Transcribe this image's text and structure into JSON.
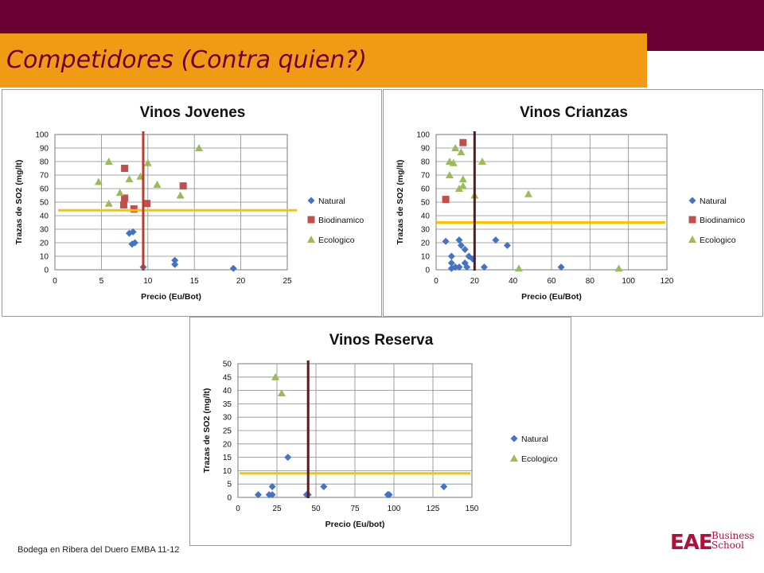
{
  "header": {
    "title": "Competidores (Contra quien?)"
  },
  "footer": {
    "text": "Bodega en Ribera del Duero EMBA 11-12"
  },
  "logo": {
    "mark": "EAE",
    "line1": "Business",
    "line2": "School"
  },
  "colors": {
    "topbar": "#6b0033",
    "titlebar": "#f29a13",
    "natural": "#4472c4",
    "biodinamico": "#c0504d",
    "ecologico": "#9bbb59",
    "threshold": "#ffc000",
    "divider_red": "#c0392b",
    "divider_dark": "#5a1a1a"
  },
  "chart_data": [
    {
      "type": "scatter",
      "title": "Vinos Jovenes",
      "xlabel": "Precio (Eu/Bot)",
      "ylabel": "Trazas de SO2 (mg/lt)",
      "xlim": [
        0,
        25
      ],
      "ylim": [
        0,
        100
      ],
      "xticks": [
        0,
        5,
        10,
        15,
        20,
        25
      ],
      "yticks": [
        0,
        10,
        20,
        30,
        40,
        50,
        60,
        70,
        80,
        90,
        100
      ],
      "grid": true,
      "legend": "right",
      "hline": 44,
      "vline": 9.5,
      "vline_color": "#c0392b",
      "series": [
        {
          "name": "Natural",
          "marker": "diamond",
          "color": "#4472c4",
          "points": [
            [
              8,
              27
            ],
            [
              8.4,
              28
            ],
            [
              8.3,
              19
            ],
            [
              8.6,
              20
            ],
            [
              9.5,
              2
            ],
            [
              12.9,
              7
            ],
            [
              12.9,
              4
            ],
            [
              19.2,
              1
            ]
          ]
        },
        {
          "name": "Biodinamico",
          "marker": "square",
          "color": "#c0504d",
          "points": [
            [
              7.5,
              75
            ],
            [
              7.5,
              53
            ],
            [
              7.4,
              48
            ],
            [
              8.5,
              45
            ],
            [
              9.9,
              49
            ],
            [
              13.8,
              62
            ]
          ]
        },
        {
          "name": "Ecologico",
          "marker": "triangle",
          "color": "#9bbb59",
          "points": [
            [
              4.7,
              65
            ],
            [
              5.8,
              80
            ],
            [
              5.8,
              49
            ],
            [
              7,
              57
            ],
            [
              8,
              67
            ],
            [
              9.2,
              69
            ],
            [
              10,
              79
            ],
            [
              11,
              63
            ],
            [
              13.5,
              55
            ],
            [
              15.5,
              90
            ]
          ]
        }
      ]
    },
    {
      "type": "scatter",
      "title": "Vinos Crianzas",
      "xlabel": "Precio (Eu/Bot)",
      "ylabel": "Trazas de SO2 (mg/lt)",
      "xlim": [
        0,
        120
      ],
      "ylim": [
        0,
        100
      ],
      "xticks": [
        0,
        20,
        40,
        60,
        80,
        100,
        120
      ],
      "yticks": [
        0,
        10,
        20,
        30,
        40,
        50,
        60,
        70,
        80,
        90,
        100
      ],
      "grid": true,
      "legend": "right",
      "hline": 35,
      "vline": 20,
      "vline_color": "#5a1a1a",
      "series": [
        {
          "name": "Natural",
          "marker": "diamond",
          "color": "#4472c4",
          "points": [
            [
              5,
              21
            ],
            [
              8,
              10
            ],
            [
              8,
              5
            ],
            [
              8,
              1
            ],
            [
              10,
              2
            ],
            [
              12,
              22
            ],
            [
              12,
              2
            ],
            [
              13,
              18
            ],
            [
              15,
              15
            ],
            [
              15,
              5
            ],
            [
              17,
              10
            ],
            [
              19,
              8
            ],
            [
              16,
              2
            ],
            [
              25,
              2
            ],
            [
              31,
              22
            ],
            [
              37,
              18
            ],
            [
              65,
              2
            ]
          ]
        },
        {
          "name": "Biodinamico",
          "marker": "square",
          "color": "#c0504d",
          "points": [
            [
              5,
              52
            ],
            [
              14,
              94
            ]
          ]
        },
        {
          "name": "Ecologico",
          "marker": "triangle",
          "color": "#9bbb59",
          "points": [
            [
              7,
              70
            ],
            [
              7,
              80
            ],
            [
              9,
              79
            ],
            [
              10,
              90
            ],
            [
              12,
              60
            ],
            [
              13,
              87
            ],
            [
              14,
              62
            ],
            [
              14,
              67
            ],
            [
              20,
              55
            ],
            [
              24,
              80
            ],
            [
              43,
              1
            ],
            [
              48,
              56
            ],
            [
              95,
              1
            ]
          ]
        }
      ]
    },
    {
      "type": "scatter",
      "title": "Vinos Reserva",
      "xlabel": "Precio (Eu/bot)",
      "ylabel": "Trazas de SO2 (mg/lt)",
      "xlim": [
        0,
        150
      ],
      "ylim": [
        0,
        50
      ],
      "xticks": [
        0,
        25,
        50,
        75,
        100,
        125,
        150
      ],
      "yticks": [
        0,
        5,
        10,
        15,
        20,
        25,
        30,
        35,
        40,
        45,
        50
      ],
      "grid": true,
      "legend": "right",
      "hline": 9,
      "vline": 45,
      "vline_color": "#5a1a1a",
      "series": [
        {
          "name": "Natural",
          "marker": "diamond",
          "color": "#4472c4",
          "points": [
            [
              13,
              1
            ],
            [
              20,
              1
            ],
            [
              22,
              1
            ],
            [
              22,
              4
            ],
            [
              32,
              15
            ],
            [
              44,
              1
            ],
            [
              45,
              1
            ],
            [
              55,
              4
            ],
            [
              96,
              1
            ],
            [
              97,
              1
            ],
            [
              132,
              4
            ]
          ]
        },
        {
          "name": "Ecologico",
          "marker": "triangle",
          "color": "#9bbb59",
          "points": [
            [
              24,
              45
            ],
            [
              28,
              39
            ]
          ]
        }
      ]
    }
  ]
}
